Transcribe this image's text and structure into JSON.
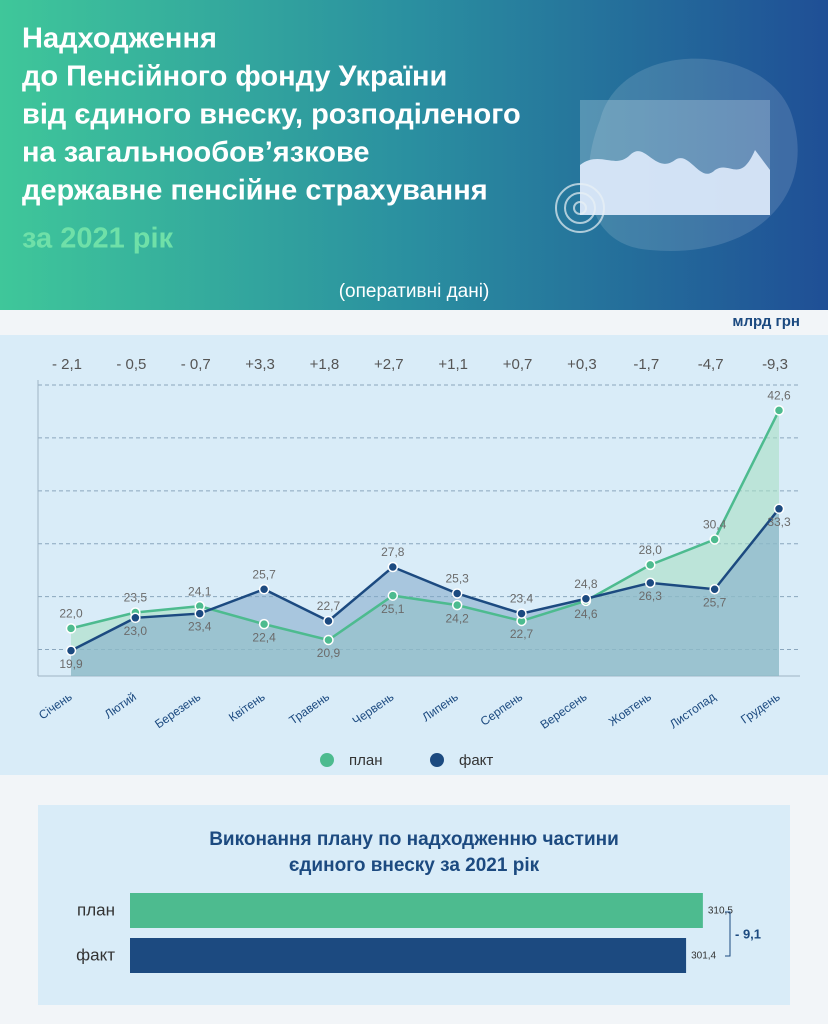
{
  "header": {
    "title": [
      "Надходження",
      "до Пенсійного фонду України",
      "від єдиного внеску, розподіленого",
      "на загальнообов’язкове",
      "державне пенсійне страхування"
    ],
    "year": "за 2021 рік",
    "note": "(оперативні дані)"
  },
  "chart_data": [
    {
      "type": "line",
      "unit": "млрд грн",
      "categories": [
        "Січень",
        "Лютий",
        "Березень",
        "Квітень",
        "Травень",
        "Червень",
        "Липень",
        "Серпень",
        "Вересень",
        "Жовтень",
        "Листопад",
        "Грудень"
      ],
      "differences": [
        "- 2,1",
        "- 0,5",
        "- 0,7",
        "+3,3",
        "+1,8",
        "+2,7",
        "+1,1",
        "+0,7",
        "+0,3",
        "-1,7",
        "-4,7",
        "-9,3"
      ],
      "series": [
        {
          "name": "план",
          "color": "#4dbb8f",
          "values": [
            22.0,
            23.5,
            24.1,
            22.4,
            20.9,
            25.1,
            24.2,
            22.7,
            24.6,
            28.0,
            30.4,
            42.6
          ],
          "value_labels": [
            "22,0",
            "23,5",
            "24,1",
            "22,4",
            "20,9",
            "25,1",
            "24,2",
            "22,7",
            "24,6",
            "28,0",
            "30,4",
            "42,6"
          ]
        },
        {
          "name": "факт",
          "color": "#1c4a80",
          "values": [
            19.9,
            23.0,
            23.4,
            25.7,
            22.7,
            27.8,
            25.3,
            23.4,
            24.8,
            26.3,
            25.7,
            33.3
          ],
          "value_labels": [
            "19,9",
            "23,0",
            "23,4",
            "25,7",
            "22,7",
            "27,8",
            "25,3",
            "23,4",
            "24,8",
            "26,3",
            "25,7",
            "33,3"
          ]
        }
      ],
      "ylim": [
        17.5,
        45
      ],
      "yticks": [
        20,
        25,
        30,
        35,
        40,
        45
      ],
      "grid": true
    },
    {
      "type": "hbar",
      "title": [
        "Виконання плану по надходженню частини",
        "єдиного внеску за 2021 рік"
      ],
      "categories": [
        "план",
        "факт"
      ],
      "values": [
        310.5,
        301.4
      ],
      "value_labels": [
        "310,5",
        "301,4"
      ],
      "colors": [
        "#4dbb8f",
        "#1c4a80"
      ],
      "difference": "- 9,1",
      "xlim": [
        0,
        330
      ]
    }
  ]
}
